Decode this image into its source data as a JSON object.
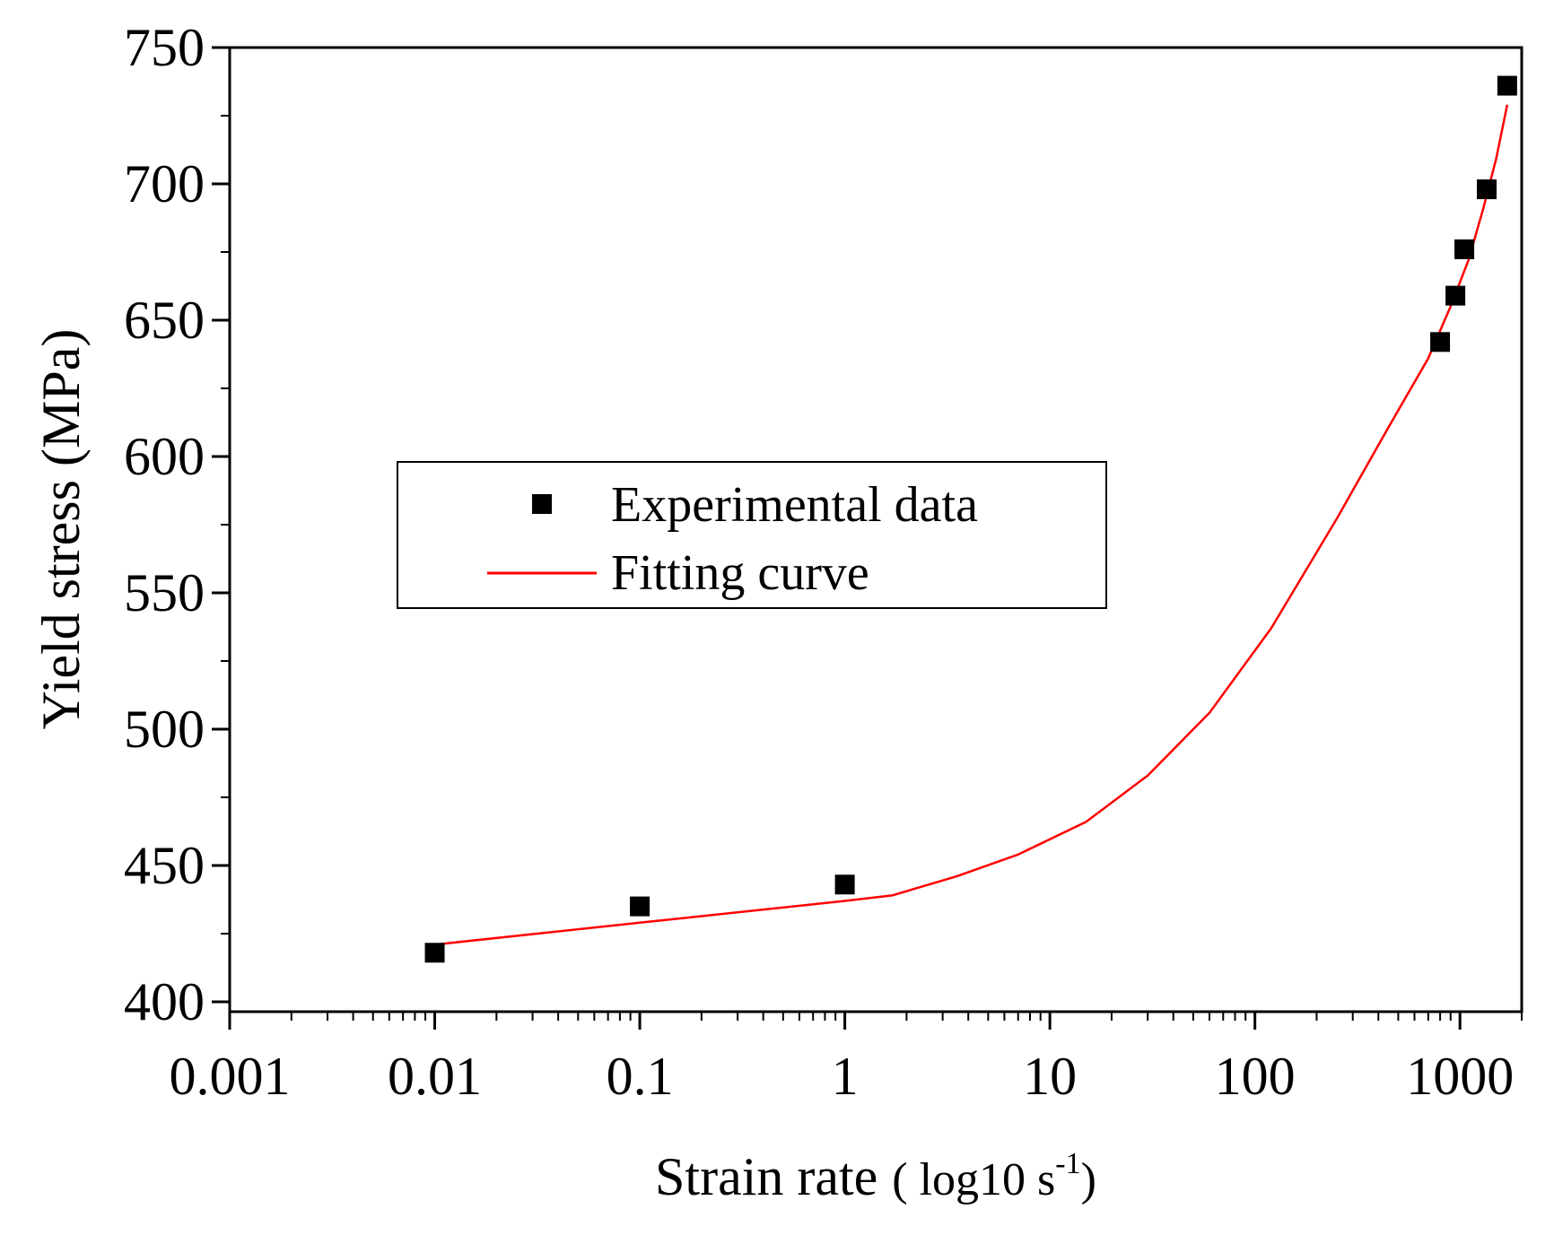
{
  "chart_data": {
    "type": "scatter",
    "title": "",
    "xlabel_main": "Strain rate",
    "xlabel_unit_open": "( log10 s",
    "xlabel_unit_sup": "-1",
    "xlabel_unit_close": ")",
    "ylabel": "Yield stress (MPa)",
    "xscale": "log",
    "xlim": [
      0.001,
      2000
    ],
    "ylim": [
      397,
      750
    ],
    "x_ticks": [
      0.001,
      0.01,
      0.1,
      1,
      10,
      100,
      1000
    ],
    "x_tick_labels": [
      "0.001",
      "0.01",
      "0.1",
      "1",
      "10",
      "100",
      "1000"
    ],
    "y_ticks": [
      400,
      450,
      500,
      550,
      600,
      650,
      700,
      750
    ],
    "y_tick_labels": [
      "400",
      "450",
      "500",
      "550",
      "600",
      "650",
      "700",
      "750"
    ],
    "legend_position": "center-left",
    "series": [
      {
        "name": "Experimental data",
        "kind": "scatter",
        "marker": "square",
        "color": "#000000",
        "x": [
          0.01,
          0.1,
          1,
          800,
          950,
          1050,
          1350,
          1700
        ],
        "y": [
          418,
          435,
          443,
          642,
          659,
          676,
          698,
          736
        ]
      },
      {
        "name": "Fitting curve",
        "kind": "line",
        "color": "#ff0000",
        "x": [
          0.01,
          0.1,
          1,
          1.7,
          3.5,
          7,
          15,
          30,
          60,
          120,
          250,
          450,
          700,
          900,
          1100,
          1300,
          1500,
          1700
        ],
        "y": [
          421,
          429,
          437,
          439,
          446,
          454,
          466,
          483,
          506,
          537,
          577,
          611,
          636,
          655,
          672,
          691,
          709,
          729
        ]
      }
    ]
  }
}
